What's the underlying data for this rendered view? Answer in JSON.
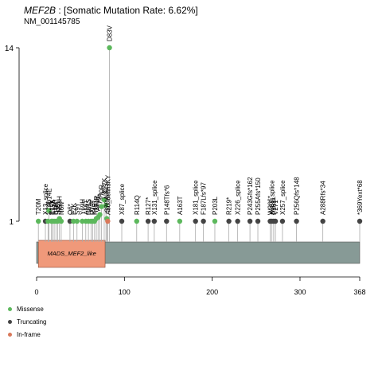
{
  "title": {
    "gene": "MEF2B",
    "rest": " : [Somatic Mutation Rate: 6.62%]"
  },
  "subtitle": "NM_001145785",
  "chart_data": {
    "type": "lollipop",
    "x_range": [
      0,
      368
    ],
    "y_ticks": [
      "1",
      "14"
    ],
    "x_ticks": [
      0,
      100,
      200,
      300,
      368
    ],
    "domain": {
      "label": "MADS_MEF2_like",
      "start": 2,
      "end": 78
    },
    "colors": {
      "missense": "#5cb85c",
      "truncating": "#444444",
      "inframe": "#d9785a",
      "protein": "#879a96",
      "domain": "#f0997a"
    },
    "legend": [
      {
        "label": "Missense",
        "color": "#5cb85c"
      },
      {
        "label": "Truncating",
        "color": "#444444"
      },
      {
        "label": "In-frame",
        "color": "#d9785a"
      }
    ],
    "mutations": [
      {
        "label": "T20M",
        "pos": 2,
        "count": 1,
        "type": "missense"
      },
      {
        "label": "X13_splice",
        "pos": 10,
        "count": 1,
        "type": "truncating"
      },
      {
        "label": "S24I",
        "pos": 13,
        "count": 1,
        "type": "missense"
      },
      {
        "label": "D14E",
        "pos": 14,
        "count": 1.8,
        "type": "missense"
      },
      {
        "label": "E17K",
        "pos": 17,
        "count": 1,
        "type": "missense"
      },
      {
        "label": "F17A",
        "pos": 20,
        "count": 1,
        "type": "missense"
      },
      {
        "label": "T15A",
        "pos": 18,
        "count": 1,
        "type": "missense"
      },
      {
        "label": "I19K",
        "pos": 22,
        "count": 1,
        "type": "missense"
      },
      {
        "label": "S35L",
        "pos": 24,
        "count": 1,
        "type": "missense"
      },
      {
        "label": "R53H",
        "pos": 26,
        "count": 1.2,
        "type": "missense"
      },
      {
        "label": "N6N",
        "pos": 28,
        "count": 1,
        "type": "missense"
      },
      {
        "label": "Q6*",
        "pos": 38,
        "count": 1,
        "type": "truncating"
      },
      {
        "label": "F2K",
        "pos": 42,
        "count": 1,
        "type": "missense"
      },
      {
        "label": "S9Y",
        "pos": 46,
        "count": 1,
        "type": "missense"
      },
      {
        "label": "Y69H",
        "pos": 52,
        "count": 1,
        "type": "missense"
      },
      {
        "label": "A56T",
        "pos": 56,
        "count": 1,
        "type": "missense"
      },
      {
        "label": "N81S",
        "pos": 59,
        "count": 1,
        "type": "missense"
      },
      {
        "label": "L67V",
        "pos": 62,
        "count": 1,
        "type": "missense"
      },
      {
        "label": "R73T",
        "pos": 64,
        "count": 1,
        "type": "missense"
      },
      {
        "label": "K4E",
        "pos": 66,
        "count": 1,
        "type": "missense"
      },
      {
        "label": "G71R",
        "pos": 68,
        "count": 1.2,
        "type": "missense"
      },
      {
        "label": "A72T",
        "pos": 70,
        "count": 1.3,
        "type": "missense"
      },
      {
        "label": "T72A",
        "pos": 72,
        "count": 1.5,
        "type": "missense"
      },
      {
        "label": "T70R",
        "pos": 74,
        "count": 2.1,
        "type": "missense"
      },
      {
        "label": "E77K",
        "pos": 77,
        "count": 2.6,
        "type": "missense"
      },
      {
        "label": "N81S",
        "pos": 79,
        "count": 2.2,
        "type": "missense"
      },
      {
        "label": "S78K",
        "pos": 80,
        "count": 1.2,
        "type": "missense"
      },
      {
        "label": "A80_delinsKY",
        "pos": 81,
        "count": 1,
        "type": "inframe"
      },
      {
        "label": "D83V",
        "pos": 83,
        "count": 14,
        "type": "missense"
      },
      {
        "label": "X87_splice",
        "pos": 97,
        "count": 1,
        "type": "truncating"
      },
      {
        "label": "R114Q",
        "pos": 114,
        "count": 1,
        "type": "missense"
      },
      {
        "label": "R127*",
        "pos": 127,
        "count": 1,
        "type": "truncating"
      },
      {
        "label": "X131_splice",
        "pos": 134,
        "count": 1,
        "type": "truncating"
      },
      {
        "label": "P148Tfs*6",
        "pos": 148,
        "count": 1,
        "type": "truncating"
      },
      {
        "label": "A163T",
        "pos": 163,
        "count": 1,
        "type": "missense"
      },
      {
        "label": "X181_splice",
        "pos": 181,
        "count": 1,
        "type": "truncating"
      },
      {
        "label": "F187Lfs*97",
        "pos": 190,
        "count": 1,
        "type": "truncating"
      },
      {
        "label": "P203L",
        "pos": 203,
        "count": 1,
        "type": "missense"
      },
      {
        "label": "R219*",
        "pos": 219,
        "count": 1,
        "type": "truncating"
      },
      {
        "label": "X226_splice",
        "pos": 229,
        "count": 1,
        "type": "truncating"
      },
      {
        "label": "P243Gfs*162",
        "pos": 243,
        "count": 1,
        "type": "truncating"
      },
      {
        "label": "P255Afs*150",
        "pos": 252,
        "count": 1,
        "type": "truncating"
      },
      {
        "label": "W266*",
        "pos": 266,
        "count": 1,
        "type": "truncating"
      },
      {
        "label": "X267_splice",
        "pos": 268,
        "count": 1,
        "type": "truncating"
      },
      {
        "label": "P268*",
        "pos": 270,
        "count": 1,
        "type": "truncating"
      },
      {
        "label": "V271*",
        "pos": 272,
        "count": 1,
        "type": "truncating"
      },
      {
        "label": "X257_splice",
        "pos": 280,
        "count": 1,
        "type": "truncating"
      },
      {
        "label": "P256Qfs*148",
        "pos": 296,
        "count": 1,
        "type": "truncating"
      },
      {
        "label": "A288Rfs*34",
        "pos": 326,
        "count": 1,
        "type": "truncating"
      },
      {
        "label": "*369Yext*68",
        "pos": 368,
        "count": 1,
        "type": "truncating"
      }
    ]
  }
}
